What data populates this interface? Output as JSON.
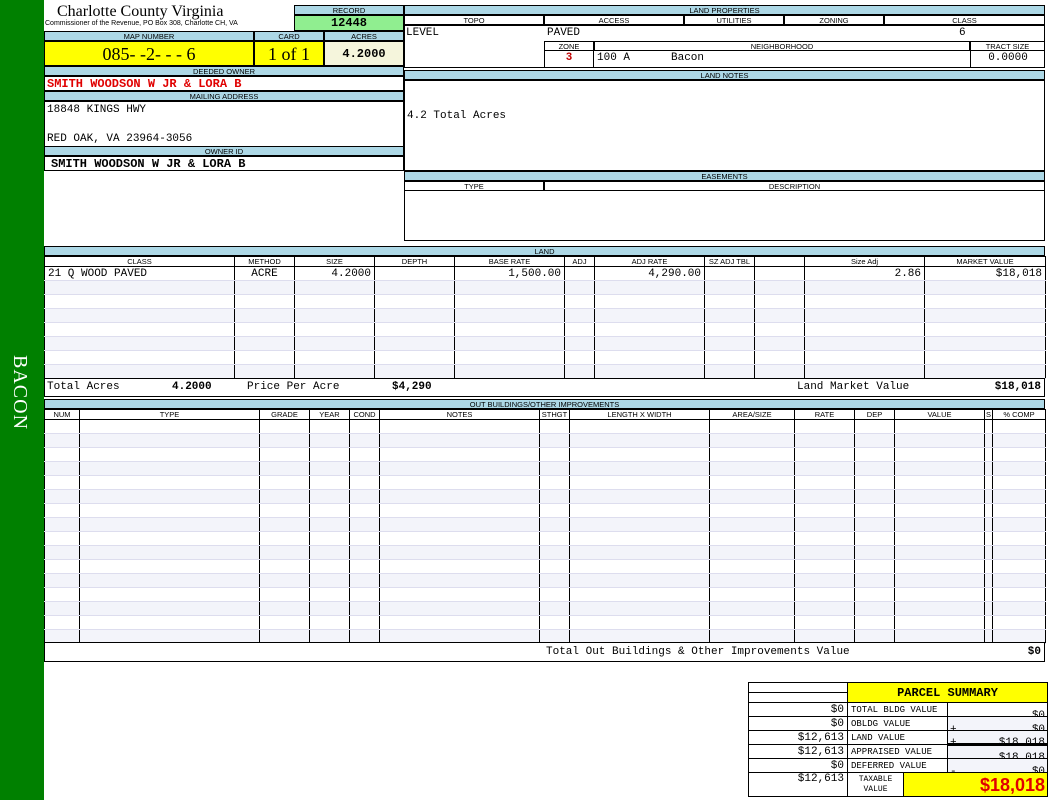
{
  "sidebar": {
    "label": "BACON",
    "color": "#008000"
  },
  "header": {
    "title": "Charlotte County Virginia",
    "subtitle": "Commissioner of the Revenue, PO Box 308, Charlotte CH, VA",
    "record_label": "RECORD",
    "record": "12448",
    "map_label": "MAP NUMBER",
    "map_number": "085- -2- - - 6",
    "card_label": "CARD",
    "card": "1 of 1",
    "acres_label": "ACRES",
    "acres": "4.2000"
  },
  "owner": {
    "deeded_label": "DEEDED OWNER",
    "deeded": "SMITH WOODSON W JR & LORA B",
    "mailing_label": "MAILING ADDRESS",
    "address1": "18848 KINGS HWY",
    "address2": "RED OAK, VA 23964-3056",
    "id_label": "OWNER ID",
    "id": "SMITH WOODSON W JR & LORA B"
  },
  "land_properties": {
    "label": "LAND PROPERTIES",
    "topo_label": "TOPO",
    "access_label": "ACCESS",
    "utilities_label": "UTILITIES",
    "zoning_label": "ZONING",
    "class_label": "CLASS",
    "topo": "LEVEL",
    "access": "PAVED",
    "utilities": "",
    "zoning": "",
    "class": "6",
    "zone_label": "ZONE",
    "neighborhood_label": "NEIGHBORHOOD",
    "tract_label": "TRACT SIZE",
    "zone": "3",
    "neighborhood_code": "100 A",
    "neighborhood": "Bacon",
    "tract_size": "0.0000"
  },
  "land_notes": {
    "label": "LAND NOTES",
    "text": "4.2 Total Acres"
  },
  "easements": {
    "label": "EASEMENTS",
    "type_label": "TYPE",
    "description_label": "DESCRIPTION"
  },
  "land": {
    "label": "LAND",
    "columns": [
      "CLASS",
      "METHOD",
      "SIZE",
      "DEPTH",
      "BASE RATE",
      "ADJ",
      "ADJ RATE",
      "SZ ADJ TBL",
      "",
      "Size Adj",
      "MARKET VALUE"
    ],
    "rows": [
      [
        "21 Q WOOD PAVED",
        "ACRE",
        "4.2000",
        "",
        "1,500.00",
        "",
        "4,290.00",
        "",
        "",
        "2.86",
        "$18,018"
      ]
    ],
    "total_acres_label": "Total Acres",
    "total_acres": "4.2000",
    "price_per_acre_label": "Price Per Acre",
    "price_per_acre": "$4,290",
    "market_value_label": "Land Market Value",
    "market_value": "$18,018"
  },
  "outbuildings": {
    "label": "OUT BUILDINGS/OTHER IMPROVEMENTS",
    "columns": [
      "NUM",
      "TYPE",
      "GRADE",
      "YEAR",
      "COND",
      "NOTES",
      "STHGT",
      "LENGTH X WIDTH",
      "AREA/SIZE",
      "RATE",
      "DEP",
      "VALUE",
      "S",
      "% COMP"
    ],
    "rows": [],
    "total_label": "Total Out Buildings & Other Improvements Value",
    "total": "$0"
  },
  "parcel_summary": {
    "title": "PARCEL SUMMARY",
    "rows": [
      {
        "prior": "$0",
        "label": "TOTAL BLDG VALUE",
        "op": "",
        "value": "$0"
      },
      {
        "prior": "$0",
        "label": "OBLDG VALUE",
        "op": "+",
        "value": "$0"
      },
      {
        "prior": "$12,613",
        "label": "LAND VALUE",
        "op": "+",
        "value": "$18,018"
      },
      {
        "prior": "$12,613",
        "label": "APPRAISED VALUE",
        "op": "",
        "value": "$18,018"
      },
      {
        "prior": "$0",
        "label": "DEFERRED VALUE",
        "op": "-",
        "value": "$0"
      }
    ],
    "taxable_prior": "$12,613",
    "taxable_label": "TAXABLE VALUE",
    "taxable": "$18,018"
  },
  "colors": {
    "label_bg": "#add8e6",
    "yellow": "#ffff00",
    "record_bg": "#90ee90",
    "accent_red": "#e00000"
  }
}
